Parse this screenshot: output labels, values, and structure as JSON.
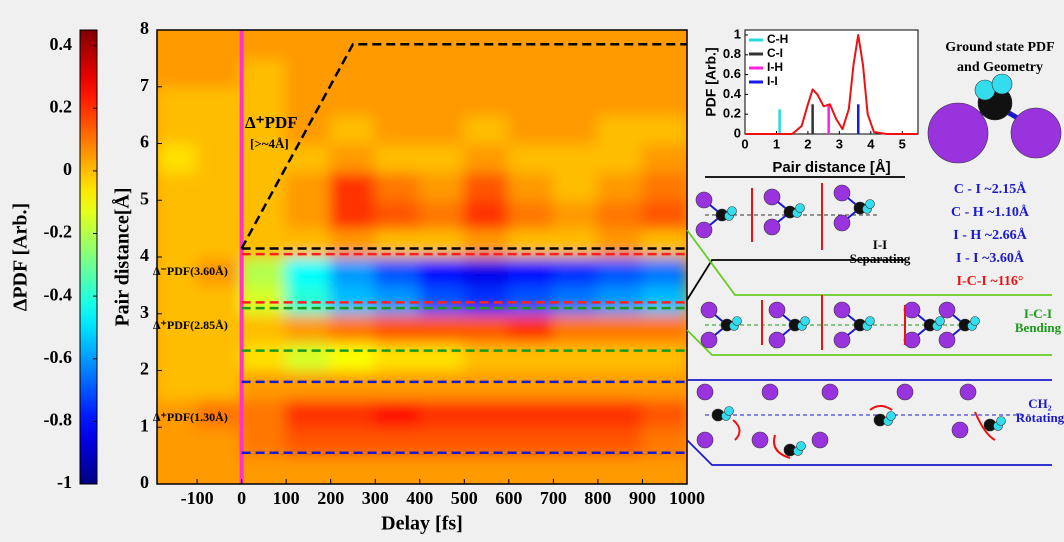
{
  "chart_data": [
    {
      "type": "heatmap",
      "xlabel": "Delay [fs]",
      "ylabel": "Pair distance[Å]",
      "xlim": [
        -190,
        1000
      ],
      "xticks": [
        -100,
        0,
        100,
        200,
        300,
        400,
        500,
        600,
        700,
        800,
        900,
        1000
      ],
      "ylim": [
        0,
        8
      ],
      "yticks": [
        0,
        1,
        2,
        3,
        4,
        5,
        6,
        7,
        8
      ],
      "x_bins": [
        -190,
        -100,
        0,
        100,
        200,
        300,
        400,
        500,
        600,
        700,
        800,
        900,
        1000
      ],
      "y_bins": [
        0,
        0.5,
        1,
        1.5,
        2,
        2.5,
        3,
        3.5,
        4,
        4.5,
        5,
        5.5,
        6,
        6.5,
        7,
        7.5,
        8
      ],
      "z": [
        [
          0.05,
          0.05,
          0.05,
          0.05,
          0.05,
          0.05,
          0.05,
          0.05,
          0.05,
          0.05,
          0.05,
          0.05
        ],
        [
          0.05,
          0.05,
          0.1,
          0.15,
          0.15,
          0.15,
          0.15,
          0.15,
          0.15,
          0.15,
          0.15,
          0.1
        ],
        [
          0.05,
          0.1,
          0.1,
          0.2,
          0.2,
          0.25,
          0.2,
          0.2,
          0.2,
          0.2,
          0.2,
          0.15
        ],
        [
          0,
          0,
          0.05,
          0.05,
          0.05,
          0.05,
          0.05,
          0.05,
          0.05,
          0.05,
          0.05,
          0.05
        ],
        [
          0,
          0,
          -0.05,
          -0.15,
          -0.1,
          -0.05,
          -0.05,
          0,
          0,
          0,
          0,
          0
        ],
        [
          0,
          0,
          0,
          0.05,
          0.1,
          0.15,
          0.15,
          0.15,
          0.2,
          0.1,
          0.1,
          0.1
        ],
        [
          0,
          0,
          -0.15,
          -0.4,
          -0.55,
          -0.6,
          -0.7,
          -0.75,
          -0.7,
          -0.65,
          -0.6,
          -0.55
        ],
        [
          0,
          0.05,
          -0.2,
          -0.45,
          -0.6,
          -0.7,
          -0.8,
          -0.85,
          -0.8,
          -0.75,
          -0.7,
          -0.65
        ],
        [
          0,
          0,
          0,
          0,
          0.05,
          0,
          0,
          0.05,
          0,
          0,
          0.05,
          0
        ],
        [
          0,
          0,
          0,
          0.05,
          0.2,
          0.15,
          0.1,
          0.2,
          0.1,
          0.05,
          0.1,
          0.15
        ],
        [
          0,
          0,
          0,
          0.05,
          0.2,
          0.1,
          0.05,
          0.15,
          0.05,
          0,
          0.05,
          0.1
        ],
        [
          -0.05,
          0,
          0,
          0,
          0.05,
          0,
          0,
          0.05,
          0,
          0,
          0,
          0.05
        ],
        [
          0,
          0,
          0,
          0.05,
          0,
          0.05,
          0.05,
          0,
          0.05,
          0.05,
          0,
          0
        ],
        [
          0,
          0,
          0,
          0.05,
          0.05,
          0.05,
          0.05,
          0.05,
          0.05,
          0.05,
          0.05,
          0.05
        ],
        [
          0.05,
          0.05,
          0,
          0.05,
          0.05,
          0.05,
          0.05,
          0.05,
          0.05,
          0.05,
          0.05,
          0.05
        ],
        [
          0.05,
          0.05,
          0.05,
          0.05,
          0.05,
          0.05,
          0.05,
          0.05,
          0.05,
          0.05,
          0.05,
          0.05
        ]
      ],
      "colorbar": {
        "label": "ΔPDF [Arb.]",
        "colormap": "jet",
        "lim": [
          -1,
          0.45
        ],
        "ticks": [
          0.4,
          0.2,
          0,
          -0.2,
          -0.4,
          -0.6,
          -0.8,
          -1
        ]
      },
      "guides": [
        {
          "color": "#ff33cc",
          "style": "solid",
          "x": [
            0,
            0
          ],
          "y": [
            0,
            8
          ]
        },
        {
          "color": "#000000",
          "style": "dashed",
          "x": [
            0,
            250,
            1000
          ],
          "y": [
            4.15,
            7.75,
            7.75
          ]
        },
        {
          "color": "#000000",
          "style": "dashed",
          "x": [
            0,
            1000
          ],
          "y": [
            4.15,
            4.15
          ]
        },
        {
          "color": "#ff2020",
          "style": "dashed",
          "x": [
            0,
            1000
          ],
          "y": [
            4.05,
            4.05
          ]
        },
        {
          "color": "#ff2020",
          "style": "dashed",
          "x": [
            0,
            1000
          ],
          "y": [
            3.2,
            3.2
          ]
        },
        {
          "color": "#1a9a1a",
          "style": "dashed",
          "x": [
            0,
            1000
          ],
          "y": [
            3.1,
            3.1
          ]
        },
        {
          "color": "#1a9a1a",
          "style": "dashed",
          "x": [
            0,
            1000
          ],
          "y": [
            2.35,
            2.35
          ]
        },
        {
          "color": "#1a1acc",
          "style": "dashed",
          "x": [
            0,
            1000
          ],
          "y": [
            1.8,
            1.8
          ]
        },
        {
          "color": "#1a1acc",
          "style": "dashed",
          "x": [
            0,
            1000
          ],
          "y": [
            0.55,
            0.55
          ]
        }
      ],
      "annotations": [
        "Δ⁺PDF",
        "[>~4Å]",
        "Δ⁻PDF(3.60Å)",
        "Δ⁺PDF(2.85Å)",
        "Δ⁺PDF(1.30Å)"
      ]
    },
    {
      "type": "line",
      "xlabel": "Pair distance [Å]",
      "ylabel": "PDF [Arb.]",
      "xlim": [
        0,
        5.5
      ],
      "xticks": [
        0,
        1,
        2,
        3,
        4,
        5
      ],
      "ylim": [
        0,
        1.05
      ],
      "yticks": [
        0,
        0.2,
        0.4,
        0.6,
        0.8,
        1
      ],
      "curve": {
        "color": "#ee1111",
        "x": [
          0,
          1.5,
          1.8,
          2.0,
          2.15,
          2.3,
          2.5,
          2.7,
          2.9,
          3.1,
          3.3,
          3.45,
          3.6,
          3.75,
          3.9,
          4.1,
          4.5,
          5.5
        ],
        "values": [
          0,
          0,
          0.08,
          0.3,
          0.45,
          0.4,
          0.28,
          0.3,
          0.15,
          0.05,
          0.25,
          0.7,
          1.0,
          0.7,
          0.2,
          0.02,
          0,
          0
        ]
      },
      "legend": "upper left",
      "series": [
        {
          "name": "C-H",
          "color": "#22dddd",
          "x": [
            1.1
          ],
          "values": [
            0.25
          ]
        },
        {
          "name": "C-I",
          "color": "#333333",
          "x": [
            2.15
          ],
          "values": [
            0.3
          ]
        },
        {
          "name": "I-H",
          "color": "#ff22dd",
          "x": [
            2.66
          ],
          "values": [
            0.3
          ]
        },
        {
          "name": "I-I",
          "color": "#1a1aee",
          "x": [
            3.6
          ],
          "values": [
            0.3
          ]
        }
      ]
    }
  ],
  "diagram": {
    "ground_state": [
      "Ground state PDF",
      "and Geometry"
    ],
    "bonds": [
      {
        "text": "C - I  ~2.15Å",
        "color": "#1a1acc"
      },
      {
        "text": "C - H  ~1.10Å",
        "color": "#1a1acc"
      },
      {
        "text": "I - H  ~2.66Å",
        "color": "#1a1acc"
      },
      {
        "text": "I - I  ~3.60Å",
        "color": "#1a1acc"
      },
      {
        "text": "I-C-I  ~116°",
        "color": "#ee1111"
      }
    ],
    "panels": [
      {
        "label": [
          "I-I",
          "Separating"
        ],
        "color": "#000000"
      },
      {
        "label": [
          "I-C-I",
          "Bending"
        ],
        "color": "#1a9a1a"
      },
      {
        "label": [
          "CH₂",
          "Rotating"
        ],
        "color": "#1a1acc"
      }
    ]
  }
}
